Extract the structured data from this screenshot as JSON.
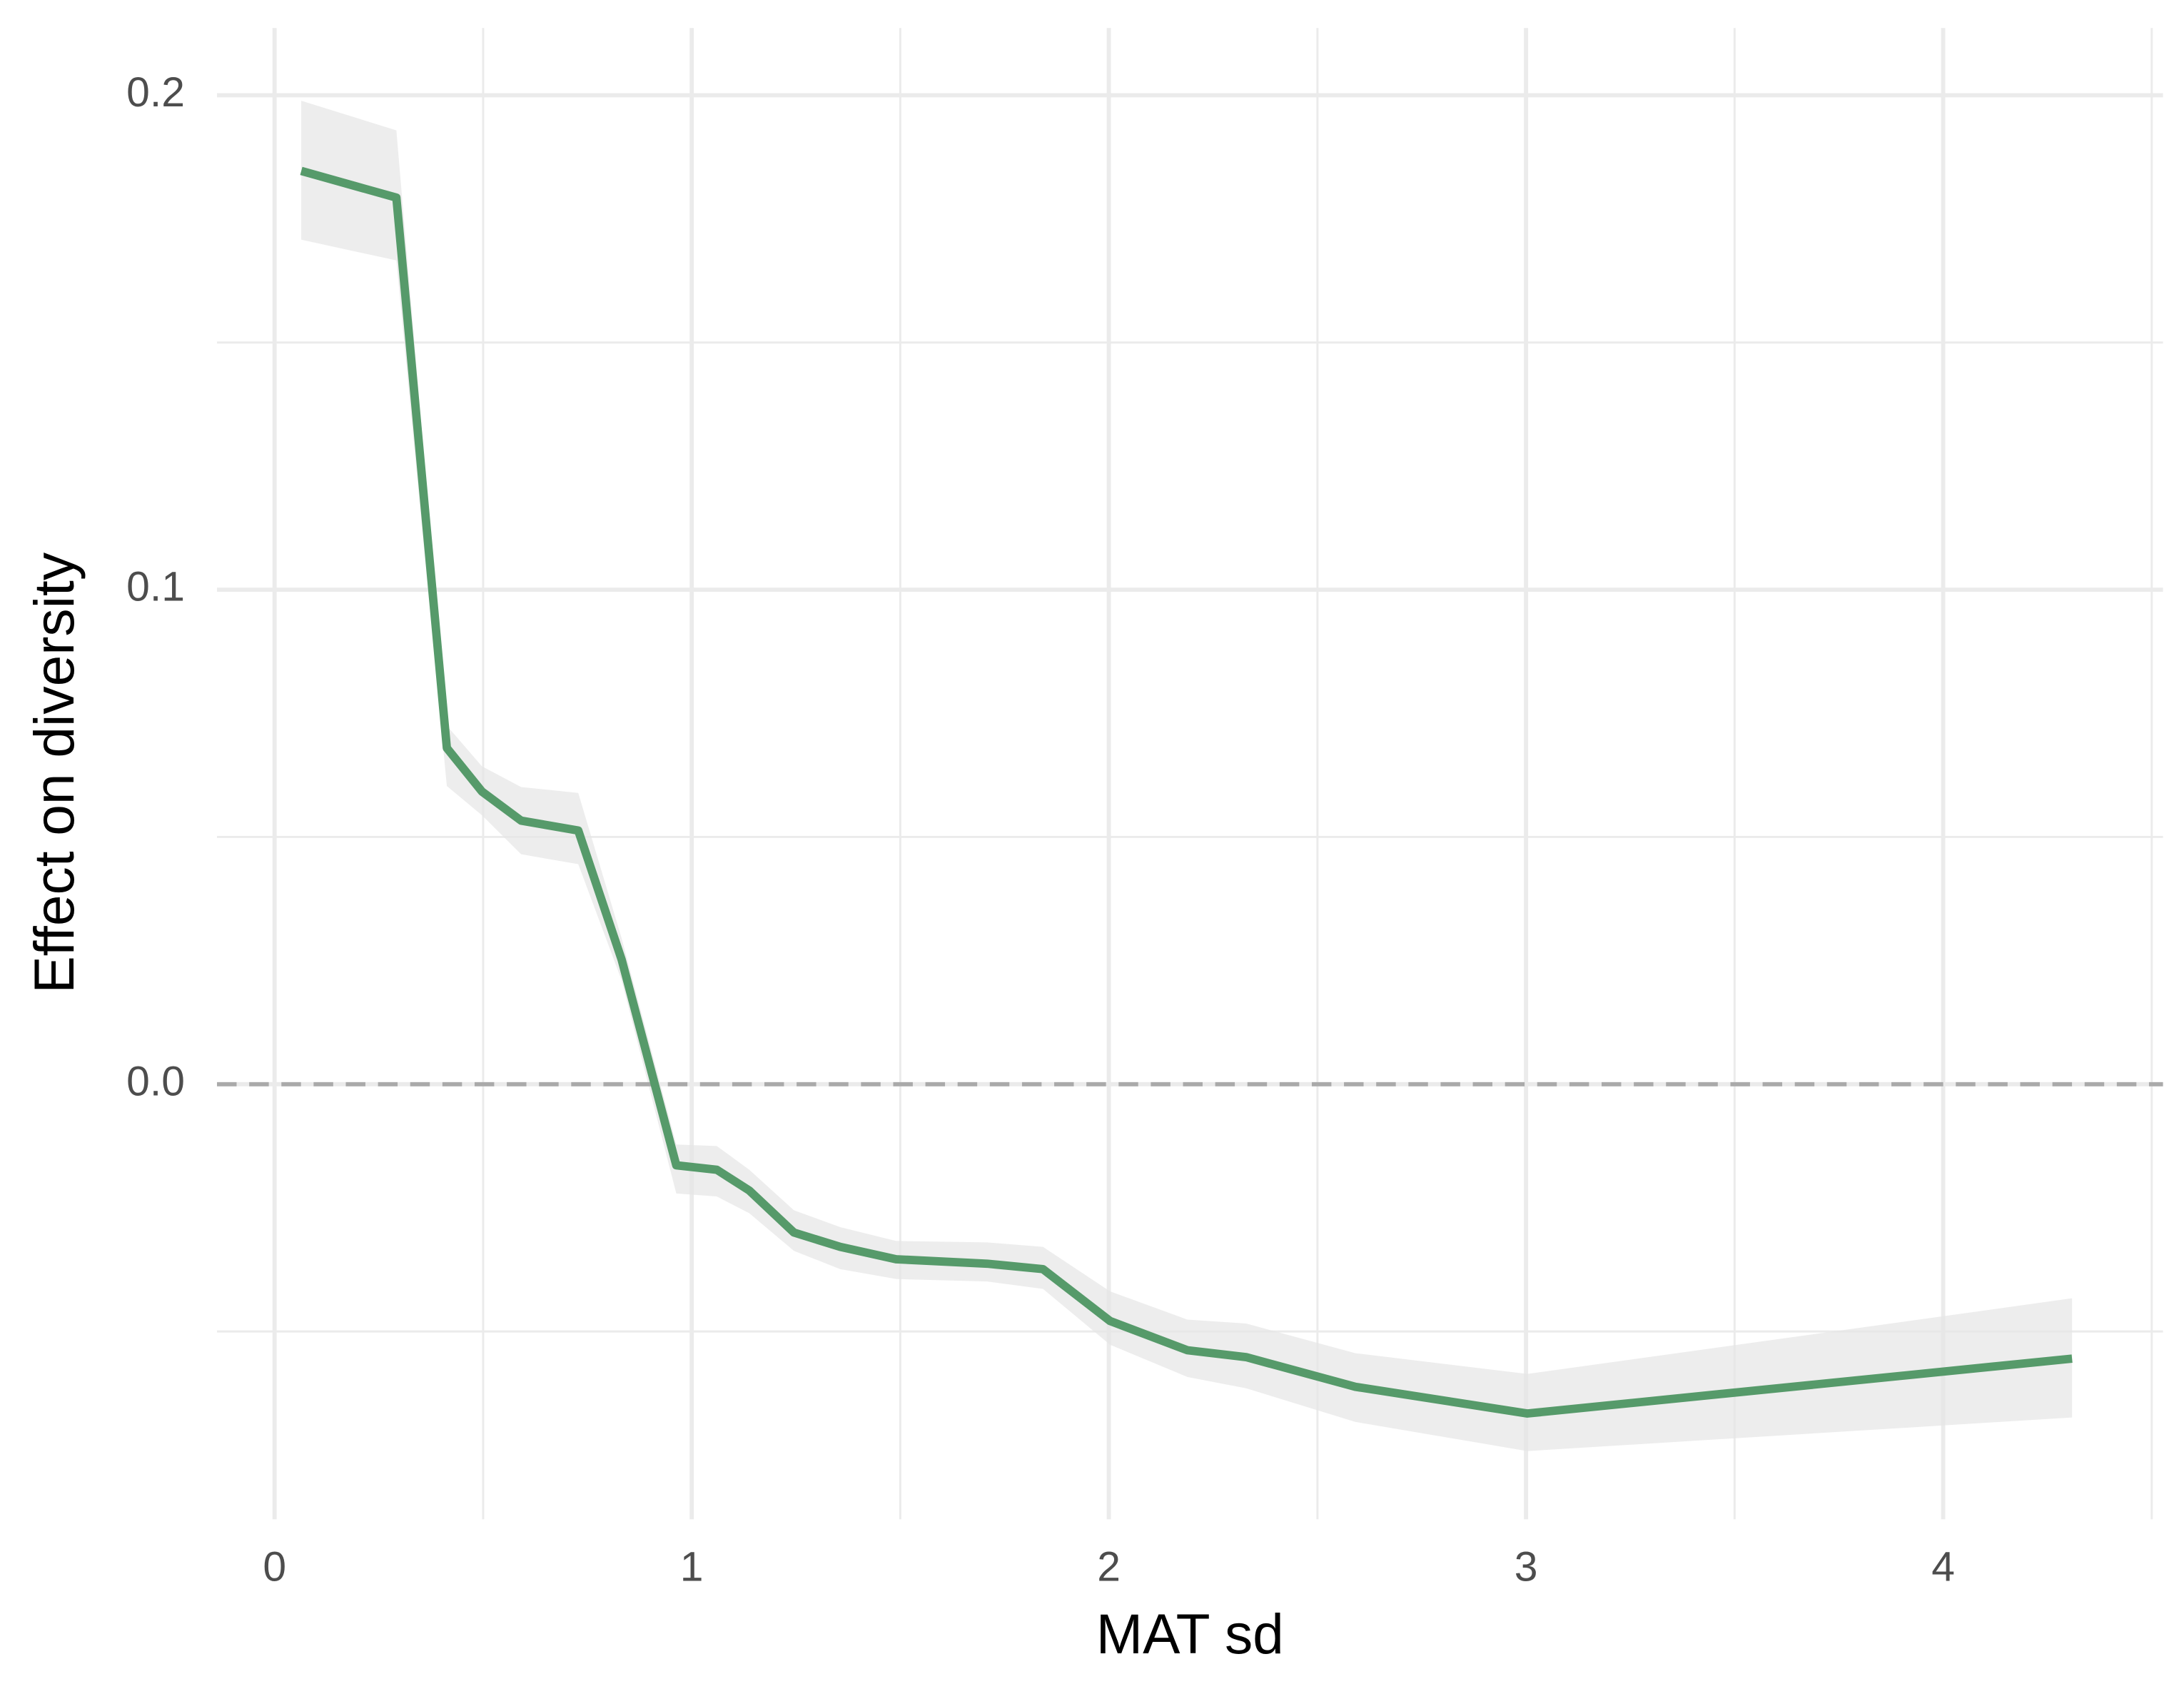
{
  "chart_data": {
    "type": "line",
    "x_label": "MAT sd",
    "y_label": "Effect on diversity",
    "xlim": [
      -0.138,
      4.527
    ],
    "ylim": [
      -0.088,
      0.2136
    ],
    "xticks": [
      0,
      1,
      2,
      3,
      4
    ],
    "yticks": [
      {
        "value": 0,
        "label": "0.0"
      },
      0.1,
      0.2
    ],
    "x_minor_ticks": [
      0.5,
      1.5,
      2.5,
      3.5,
      4.5
    ],
    "y_minor_ticks": [
      -0.05,
      0.05,
      0.15
    ],
    "grid": true,
    "hline": 0,
    "x": [
      0.064,
      0.292,
      0.413,
      0.497,
      0.591,
      0.728,
      0.832,
      0.963,
      1.06,
      1.138,
      1.245,
      1.356,
      1.49,
      1.708,
      1.842,
      2.003,
      2.188,
      2.329,
      2.591,
      3.003,
      4.309
    ],
    "series": [
      {
        "color": "#569a6a",
        "band_color": "#e6e6e6",
        "values": [
          0.1847,
          0.1793,
          0.068,
          0.0592,
          0.0533,
          0.0513,
          0.0252,
          -0.0164,
          -0.0173,
          -0.0215,
          -0.03,
          -0.0329,
          -0.0354,
          -0.0363,
          -0.0374,
          -0.0479,
          -0.0538,
          -0.0552,
          -0.0612,
          -0.0666,
          -0.0555
        ],
        "upper": [
          0.1989,
          0.1929,
          0.0725,
          0.0643,
          0.0601,
          0.0589,
          0.0295,
          -0.0122,
          -0.0125,
          -0.0173,
          -0.0255,
          -0.0289,
          -0.0317,
          -0.032,
          -0.0329,
          -0.0419,
          -0.0476,
          -0.0484,
          -0.0544,
          -0.0586,
          -0.0433
        ],
        "lower": [
          0.1708,
          0.1666,
          0.0603,
          0.0544,
          0.0465,
          0.0445,
          0.021,
          -0.0221,
          -0.0227,
          -0.0261,
          -0.0337,
          -0.0374,
          -0.0394,
          -0.0399,
          -0.0414,
          -0.0527,
          -0.0592,
          -0.0615,
          -0.0683,
          -0.0742,
          -0.0674
        ]
      }
    ]
  }
}
